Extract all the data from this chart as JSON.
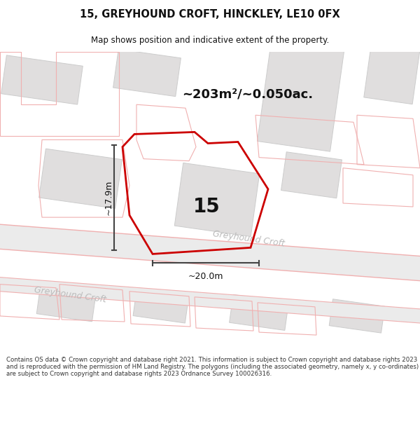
{
  "title": "15, GREYHOUND CROFT, HINCKLEY, LE10 0FX",
  "subtitle": "Map shows position and indicative extent of the property.",
  "area_label": "~203m²/~0.050ac.",
  "number_label": "15",
  "dim_width": "~20.0m",
  "dim_height": "~17.9m",
  "street_label_main": "Greyhound Croft",
  "street_label_lower": "Greyhound Croft",
  "footer": "Contains OS data © Crown copyright and database right 2021. This information is subject to Crown copyright and database rights 2023 and is reproduced with the permission of HM Land Registry. The polygons (including the associated geometry, namely x, y co-ordinates) are subject to Crown copyright and database rights 2023 Ordnance Survey 100026316.",
  "map_bg": "#f5f5f5",
  "road_fill": "#e8e5e5",
  "road_edge": "#f0b0b0",
  "building_fill": "#e0dede",
  "building_edge": "#cccccc",
  "plot_edge": "#cc0000",
  "dim_color": "#444444",
  "street_color": "#bbbbbb",
  "text_color": "#111111",
  "footer_color": "#333333",
  "white": "#ffffff"
}
